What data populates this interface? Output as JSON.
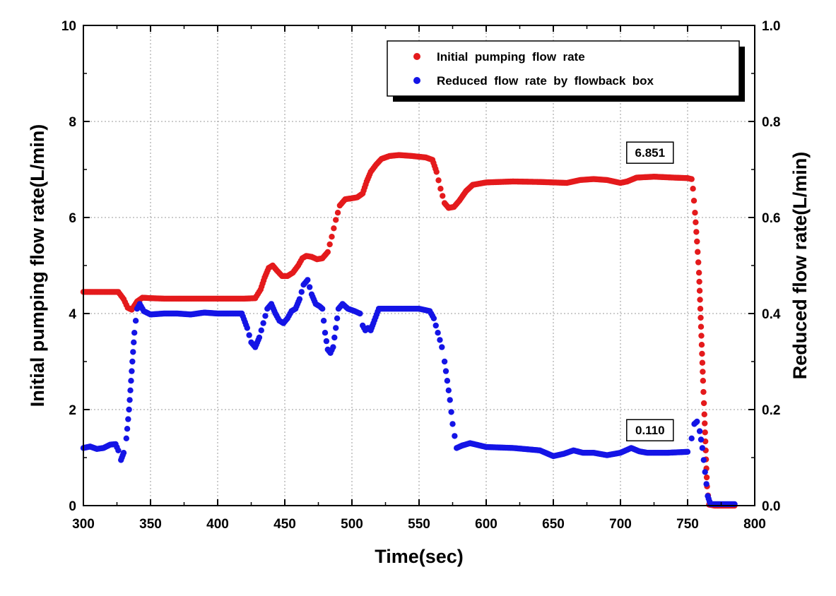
{
  "chart_data": {
    "type": "scatter",
    "title": "",
    "xlabel": "Time(sec)",
    "ylabel_left": "Initial pumping flow rate(L/min)",
    "ylabel_right": "Reduced  flow  rate(L/min)",
    "xlim": [
      300,
      800
    ],
    "ylim_left": [
      0,
      10
    ],
    "ylim_right": [
      0,
      1.0
    ],
    "x_ticks": [
      300,
      350,
      400,
      450,
      500,
      550,
      600,
      650,
      700,
      750,
      800
    ],
    "x_tick_labels": [
      "300",
      "350",
      "400",
      "450",
      "500",
      "550",
      "600",
      "650",
      "700",
      "750",
      "800"
    ],
    "y_left_ticks": [
      0,
      2,
      4,
      6,
      8,
      10
    ],
    "y_left_tick_labels": [
      "0",
      "2",
      "4",
      "6",
      "8",
      "10"
    ],
    "y_right_ticks": [
      0,
      0.2,
      0.4,
      0.6,
      0.8,
      1.0
    ],
    "y_right_tick_labels": [
      "0.0",
      "0.2",
      "0.4",
      "0.6",
      "0.8",
      "1.0"
    ],
    "grid": true,
    "legend_position": "top-right",
    "series": [
      {
        "name": "Initial  pumping  flow  rate",
        "color": "#e41a1c",
        "axis": "left",
        "points": [
          [
            300,
            4.45
          ],
          [
            310,
            4.45
          ],
          [
            320,
            4.45
          ],
          [
            326,
            4.45
          ],
          [
            330,
            4.3
          ],
          [
            333,
            4.12
          ],
          [
            336,
            4.08
          ],
          [
            340,
            4.25
          ],
          [
            344,
            4.33
          ],
          [
            350,
            4.32
          ],
          [
            360,
            4.31
          ],
          [
            380,
            4.31
          ],
          [
            400,
            4.31
          ],
          [
            420,
            4.31
          ],
          [
            428,
            4.32
          ],
          [
            432,
            4.5
          ],
          [
            435,
            4.75
          ],
          [
            438,
            4.95
          ],
          [
            441,
            5.0
          ],
          [
            444,
            4.9
          ],
          [
            448,
            4.78
          ],
          [
            452,
            4.78
          ],
          [
            456,
            4.85
          ],
          [
            460,
            5.0
          ],
          [
            463,
            5.15
          ],
          [
            466,
            5.2
          ],
          [
            470,
            5.18
          ],
          [
            474,
            5.13
          ],
          [
            478,
            5.15
          ],
          [
            482,
            5.28
          ],
          [
            485,
            5.6
          ],
          [
            488,
            5.95
          ],
          [
            491,
            6.25
          ],
          [
            495,
            6.38
          ],
          [
            500,
            6.4
          ],
          [
            504,
            6.42
          ],
          [
            508,
            6.5
          ],
          [
            511,
            6.75
          ],
          [
            514,
            6.95
          ],
          [
            518,
            7.1
          ],
          [
            522,
            7.22
          ],
          [
            528,
            7.28
          ],
          [
            535,
            7.3
          ],
          [
            545,
            7.28
          ],
          [
            555,
            7.25
          ],
          [
            560,
            7.2
          ],
          [
            563,
            6.95
          ],
          [
            566,
            6.6
          ],
          [
            569,
            6.3
          ],
          [
            572,
            6.2
          ],
          [
            576,
            6.22
          ],
          [
            580,
            6.35
          ],
          [
            585,
            6.55
          ],
          [
            590,
            6.68
          ],
          [
            600,
            6.73
          ],
          [
            620,
            6.75
          ],
          [
            640,
            6.74
          ],
          [
            660,
            6.72
          ],
          [
            670,
            6.78
          ],
          [
            680,
            6.8
          ],
          [
            690,
            6.78
          ],
          [
            700,
            6.72
          ],
          [
            705,
            6.75
          ],
          [
            712,
            6.83
          ],
          [
            725,
            6.85
          ],
          [
            740,
            6.83
          ],
          [
            750,
            6.82
          ],
          [
            753,
            6.8
          ],
          [
            754,
            6.6
          ],
          [
            755.5,
            6.1
          ],
          [
            757,
            5.5
          ],
          [
            758.5,
            4.85
          ],
          [
            759.5,
            4.1
          ],
          [
            760.5,
            3.35
          ],
          [
            761.5,
            2.6
          ],
          [
            762.5,
            1.9
          ],
          [
            763.5,
            1.15
          ],
          [
            764.5,
            0.4
          ],
          [
            766,
            0.02
          ],
          [
            770,
            0.0
          ],
          [
            775,
            0.0
          ],
          [
            780,
            0.0
          ],
          [
            785,
            0.0
          ]
        ]
      },
      {
        "name": "Reduced  flow  rate  by  flowback  box",
        "color": "#1414e6",
        "axis": "right",
        "points": [
          [
            300,
            0.12
          ],
          [
            305,
            0.123
          ],
          [
            310,
            0.118
          ],
          [
            315,
            0.12
          ],
          [
            320,
            0.127
          ],
          [
            324,
            0.128
          ],
          [
            326,
            0.115
          ],
          [
            328,
            0.095
          ],
          [
            330,
            0.11
          ],
          [
            332,
            0.14
          ],
          [
            334,
            0.2
          ],
          [
            336,
            0.28
          ],
          [
            338,
            0.36
          ],
          [
            340,
            0.41
          ],
          [
            342,
            0.42
          ],
          [
            345,
            0.405
          ],
          [
            350,
            0.398
          ],
          [
            360,
            0.4
          ],
          [
            370,
            0.4
          ],
          [
            380,
            0.398
          ],
          [
            390,
            0.402
          ],
          [
            400,
            0.4
          ],
          [
            410,
            0.4
          ],
          [
            418,
            0.4
          ],
          [
            422,
            0.37
          ],
          [
            425,
            0.34
          ],
          [
            428,
            0.33
          ],
          [
            431,
            0.35
          ],
          [
            434,
            0.38
          ],
          [
            437,
            0.41
          ],
          [
            440,
            0.42
          ],
          [
            443,
            0.4
          ],
          [
            446,
            0.385
          ],
          [
            449,
            0.38
          ],
          [
            452,
            0.39
          ],
          [
            455,
            0.405
          ],
          [
            458,
            0.41
          ],
          [
            461,
            0.43
          ],
          [
            464,
            0.46
          ],
          [
            467,
            0.47
          ],
          [
            470,
            0.44
          ],
          [
            473,
            0.42
          ],
          [
            476,
            0.415
          ],
          [
            478,
            0.41
          ],
          [
            480,
            0.36
          ],
          [
            482,
            0.325
          ],
          [
            484,
            0.318
          ],
          [
            486,
            0.33
          ],
          [
            488,
            0.37
          ],
          [
            490,
            0.41
          ],
          [
            493,
            0.42
          ],
          [
            497,
            0.41
          ],
          [
            502,
            0.405
          ],
          [
            506,
            0.4
          ],
          [
            508,
            0.375
          ],
          [
            510,
            0.365
          ],
          [
            512,
            0.37
          ],
          [
            514,
            0.365
          ],
          [
            516,
            0.38
          ],
          [
            520,
            0.41
          ],
          [
            530,
            0.41
          ],
          [
            540,
            0.41
          ],
          [
            550,
            0.41
          ],
          [
            558,
            0.405
          ],
          [
            561,
            0.39
          ],
          [
            564,
            0.36
          ],
          [
            567,
            0.33
          ],
          [
            569,
            0.3
          ],
          [
            571,
            0.26
          ],
          [
            573,
            0.22
          ],
          [
            575,
            0.17
          ],
          [
            578,
            0.12
          ],
          [
            582,
            0.125
          ],
          [
            588,
            0.13
          ],
          [
            600,
            0.122
          ],
          [
            620,
            0.12
          ],
          [
            640,
            0.115
          ],
          [
            650,
            0.103
          ],
          [
            658,
            0.108
          ],
          [
            665,
            0.115
          ],
          [
            672,
            0.11
          ],
          [
            680,
            0.11
          ],
          [
            690,
            0.105
          ],
          [
            700,
            0.11
          ],
          [
            708,
            0.12
          ],
          [
            714,
            0.113
          ],
          [
            720,
            0.11
          ],
          [
            735,
            0.11
          ],
          [
            750,
            0.112
          ],
          [
            753,
            0.14
          ],
          [
            755,
            0.17
          ],
          [
            757,
            0.175
          ],
          [
            759,
            0.155
          ],
          [
            761,
            0.12
          ],
          [
            763,
            0.07
          ],
          [
            765,
            0.02
          ],
          [
            767,
            0.003
          ],
          [
            772,
            0.003
          ],
          [
            778,
            0.003
          ],
          [
            785,
            0.003
          ]
        ]
      }
    ],
    "annotations": [
      {
        "text": "6.851",
        "x": 722,
        "y_left": 7.35
      },
      {
        "text": "0.110",
        "x": 722,
        "y_left": 1.57
      }
    ]
  }
}
